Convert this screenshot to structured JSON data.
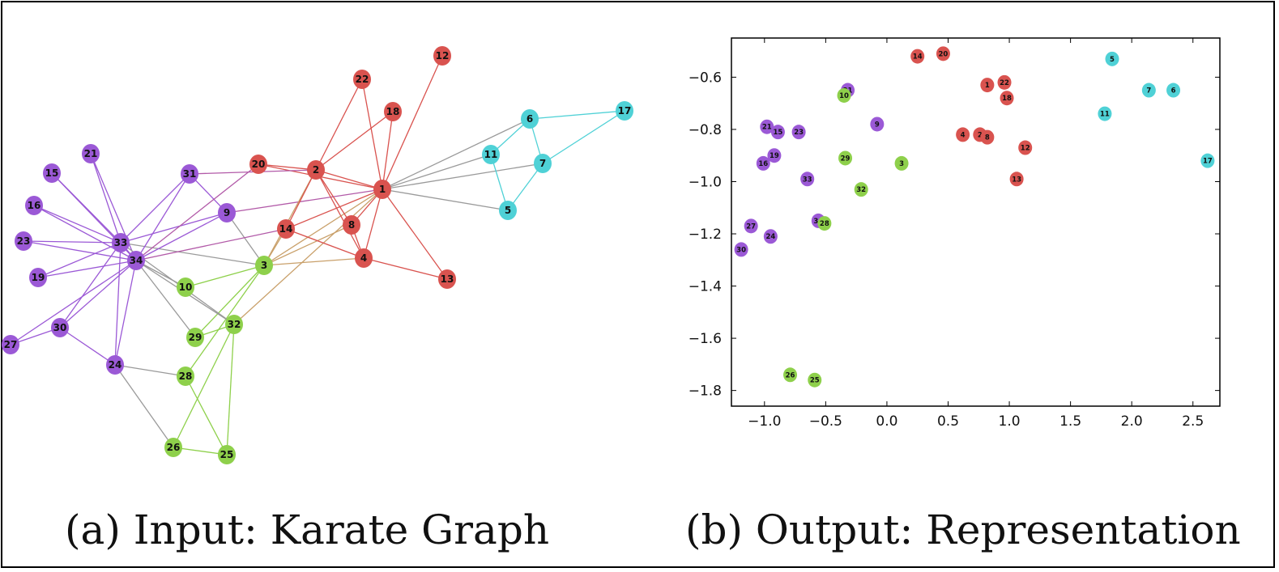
{
  "captions": {
    "a": "(a) Input: Karate Graph",
    "b": "(b) Output: Representation"
  },
  "colors": {
    "purple": "#9b59d6",
    "red": "#d9534f",
    "green": "#8ed04b",
    "cyan": "#4fd1d6",
    "edge_gray": "#9a9a9a",
    "edge_tan": "#c9a06a"
  },
  "graph": {
    "nodes": [
      {
        "id": "1",
        "group": "red"
      },
      {
        "id": "2",
        "group": "red"
      },
      {
        "id": "3",
        "group": "green"
      },
      {
        "id": "4",
        "group": "red"
      },
      {
        "id": "5",
        "group": "cyan"
      },
      {
        "id": "6",
        "group": "cyan"
      },
      {
        "id": "7",
        "group": "cyan"
      },
      {
        "id": "8",
        "group": "red"
      },
      {
        "id": "9",
        "group": "purple"
      },
      {
        "id": "10",
        "group": "green"
      },
      {
        "id": "11",
        "group": "cyan"
      },
      {
        "id": "12",
        "group": "red"
      },
      {
        "id": "13",
        "group": "red"
      },
      {
        "id": "14",
        "group": "red"
      },
      {
        "id": "15",
        "group": "purple"
      },
      {
        "id": "16",
        "group": "purple"
      },
      {
        "id": "17",
        "group": "cyan"
      },
      {
        "id": "18",
        "group": "red"
      },
      {
        "id": "19",
        "group": "purple"
      },
      {
        "id": "20",
        "group": "red"
      },
      {
        "id": "21",
        "group": "purple"
      },
      {
        "id": "22",
        "group": "red"
      },
      {
        "id": "23",
        "group": "purple"
      },
      {
        "id": "24",
        "group": "purple"
      },
      {
        "id": "25",
        "group": "green"
      },
      {
        "id": "26",
        "group": "green"
      },
      {
        "id": "27",
        "group": "purple"
      },
      {
        "id": "28",
        "group": "green"
      },
      {
        "id": "29",
        "group": "green"
      },
      {
        "id": "30",
        "group": "purple"
      },
      {
        "id": "31",
        "group": "purple"
      },
      {
        "id": "32",
        "group": "green"
      },
      {
        "id": "33",
        "group": "purple"
      },
      {
        "id": "34",
        "group": "purple"
      }
    ],
    "edges": [
      [
        "1",
        "2"
      ],
      [
        "1",
        "3"
      ],
      [
        "1",
        "4"
      ],
      [
        "1",
        "5"
      ],
      [
        "1",
        "6"
      ],
      [
        "1",
        "7"
      ],
      [
        "1",
        "8"
      ],
      [
        "1",
        "9"
      ],
      [
        "1",
        "11"
      ],
      [
        "1",
        "12"
      ],
      [
        "1",
        "13"
      ],
      [
        "1",
        "14"
      ],
      [
        "1",
        "18"
      ],
      [
        "1",
        "20"
      ],
      [
        "1",
        "22"
      ],
      [
        "1",
        "32"
      ],
      [
        "2",
        "3"
      ],
      [
        "2",
        "4"
      ],
      [
        "2",
        "8"
      ],
      [
        "2",
        "14"
      ],
      [
        "2",
        "18"
      ],
      [
        "2",
        "20"
      ],
      [
        "2",
        "22"
      ],
      [
        "2",
        "31"
      ],
      [
        "3",
        "4"
      ],
      [
        "3",
        "8"
      ],
      [
        "3",
        "9"
      ],
      [
        "3",
        "10"
      ],
      [
        "3",
        "14"
      ],
      [
        "3",
        "28"
      ],
      [
        "3",
        "29"
      ],
      [
        "3",
        "33"
      ],
      [
        "4",
        "8"
      ],
      [
        "4",
        "13"
      ],
      [
        "4",
        "14"
      ],
      [
        "5",
        "7"
      ],
      [
        "5",
        "11"
      ],
      [
        "6",
        "7"
      ],
      [
        "6",
        "11"
      ],
      [
        "6",
        "17"
      ],
      [
        "7",
        "17"
      ],
      [
        "9",
        "31"
      ],
      [
        "9",
        "33"
      ],
      [
        "9",
        "34"
      ],
      [
        "10",
        "34"
      ],
      [
        "14",
        "34"
      ],
      [
        "15",
        "33"
      ],
      [
        "15",
        "34"
      ],
      [
        "16",
        "33"
      ],
      [
        "16",
        "34"
      ],
      [
        "19",
        "33"
      ],
      [
        "19",
        "34"
      ],
      [
        "20",
        "34"
      ],
      [
        "21",
        "33"
      ],
      [
        "21",
        "34"
      ],
      [
        "23",
        "33"
      ],
      [
        "23",
        "34"
      ],
      [
        "24",
        "26"
      ],
      [
        "24",
        "28"
      ],
      [
        "24",
        "30"
      ],
      [
        "24",
        "33"
      ],
      [
        "24",
        "34"
      ],
      [
        "25",
        "26"
      ],
      [
        "25",
        "28"
      ],
      [
        "25",
        "32"
      ],
      [
        "26",
        "32"
      ],
      [
        "27",
        "30"
      ],
      [
        "27",
        "34"
      ],
      [
        "29",
        "32"
      ],
      [
        "29",
        "34"
      ],
      [
        "30",
        "33"
      ],
      [
        "30",
        "34"
      ],
      [
        "31",
        "33"
      ],
      [
        "31",
        "34"
      ],
      [
        "32",
        "33"
      ],
      [
        "32",
        "34"
      ],
      [
        "33",
        "34"
      ]
    ]
  },
  "chart_data": {
    "type": "scatter",
    "title": "",
    "xlabel": "",
    "ylabel": "",
    "xlim": [
      -1.27,
      2.72
    ],
    "ylim": [
      -1.86,
      -0.45
    ],
    "xticks": [
      "−1.0",
      "−0.5",
      "0.0",
      "0.5",
      "1.0",
      "1.5",
      "2.0",
      "2.5"
    ],
    "xtick_values": [
      -1.0,
      -0.5,
      0.0,
      0.5,
      1.0,
      1.5,
      2.0,
      2.5
    ],
    "yticks": [
      "−0.6",
      "−0.8",
      "−1.0",
      "−1.2",
      "−1.4",
      "−1.6",
      "−1.8"
    ],
    "ytick_values": [
      -0.6,
      -0.8,
      -1.0,
      -1.2,
      -1.4,
      -1.6,
      -1.8
    ],
    "grid": false,
    "points": [
      {
        "label": "14",
        "x": 0.25,
        "y": -0.52,
        "group": "red"
      },
      {
        "label": "20",
        "x": 0.46,
        "y": -0.51,
        "group": "red"
      },
      {
        "label": "5",
        "x": 1.84,
        "y": -0.53,
        "group": "cyan"
      },
      {
        "label": "1",
        "x": 0.82,
        "y": -0.63,
        "group": "red"
      },
      {
        "label": "22",
        "x": 0.96,
        "y": -0.62,
        "group": "red"
      },
      {
        "label": "18",
        "x": 0.98,
        "y": -0.68,
        "group": "red"
      },
      {
        "label": "7",
        "x": 2.14,
        "y": -0.65,
        "group": "cyan"
      },
      {
        "label": "6",
        "x": 2.34,
        "y": -0.65,
        "group": "cyan"
      },
      {
        "label": "31",
        "x": -0.32,
        "y": -0.65,
        "group": "purple"
      },
      {
        "label": "10",
        "x": -0.35,
        "y": -0.67,
        "group": "green"
      },
      {
        "label": "11",
        "x": 1.78,
        "y": -0.74,
        "group": "cyan"
      },
      {
        "label": "21",
        "x": -0.98,
        "y": -0.79,
        "group": "purple"
      },
      {
        "label": "15",
        "x": -0.89,
        "y": -0.81,
        "group": "purple"
      },
      {
        "label": "23",
        "x": -0.72,
        "y": -0.81,
        "group": "purple"
      },
      {
        "label": "9",
        "x": -0.08,
        "y": -0.78,
        "group": "purple"
      },
      {
        "label": "4",
        "x": 0.62,
        "y": -0.82,
        "group": "red"
      },
      {
        "label": "2",
        "x": 0.76,
        "y": -0.82,
        "group": "red"
      },
      {
        "label": "8",
        "x": 0.82,
        "y": -0.83,
        "group": "red"
      },
      {
        "label": "12",
        "x": 1.13,
        "y": -0.87,
        "group": "red"
      },
      {
        "label": "17",
        "x": 2.62,
        "y": -0.92,
        "group": "cyan"
      },
      {
        "label": "19",
        "x": -0.92,
        "y": -0.9,
        "group": "purple"
      },
      {
        "label": "16",
        "x": -1.01,
        "y": -0.93,
        "group": "purple"
      },
      {
        "label": "29",
        "x": -0.34,
        "y": -0.91,
        "group": "green"
      },
      {
        "label": "3",
        "x": 0.12,
        "y": -0.93,
        "group": "green"
      },
      {
        "label": "33",
        "x": -0.65,
        "y": -0.99,
        "group": "purple"
      },
      {
        "label": "13",
        "x": 1.06,
        "y": -0.99,
        "group": "red"
      },
      {
        "label": "32",
        "x": -0.21,
        "y": -1.03,
        "group": "green"
      },
      {
        "label": "34",
        "x": -0.56,
        "y": -1.15,
        "group": "purple"
      },
      {
        "label": "28",
        "x": -0.51,
        "y": -1.16,
        "group": "green"
      },
      {
        "label": "27",
        "x": -1.11,
        "y": -1.17,
        "group": "purple"
      },
      {
        "label": "24",
        "x": -0.95,
        "y": -1.21,
        "group": "purple"
      },
      {
        "label": "30",
        "x": -1.19,
        "y": -1.26,
        "group": "purple"
      },
      {
        "label": "26",
        "x": -0.79,
        "y": -1.74,
        "group": "green"
      },
      {
        "label": "25",
        "x": -0.59,
        "y": -1.76,
        "group": "green"
      }
    ]
  }
}
